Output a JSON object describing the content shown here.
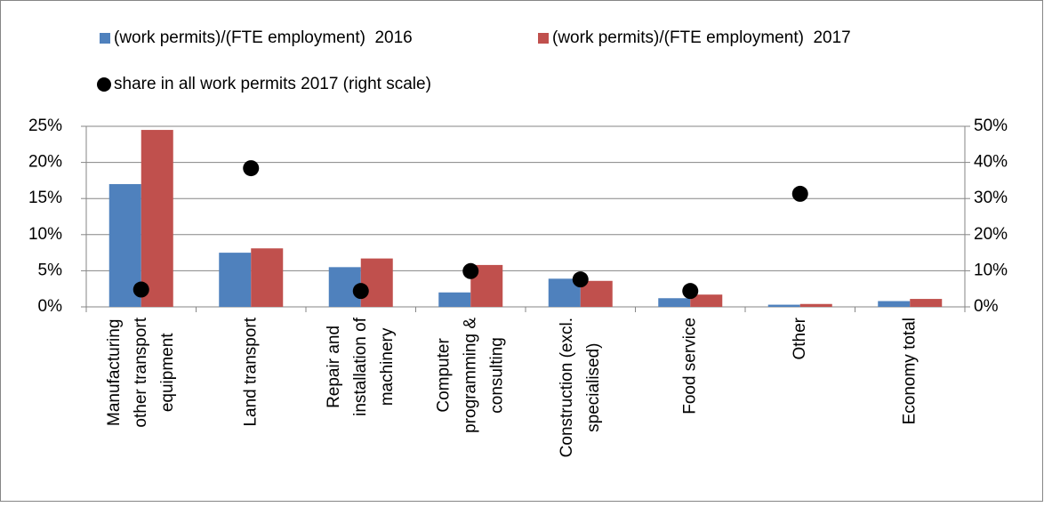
{
  "chart_data": {
    "type": "bar",
    "categories": [
      "Manufacturing other transport equipment",
      "Land transport",
      "Repair and installation of machinery",
      "Computer programming & consulting",
      "Construction (excl. specialised)",
      "Food service",
      "Other",
      "Economy total"
    ],
    "series": [
      {
        "name": "(work permits)/(FTE employment)  2016",
        "type": "bar",
        "color": "#4f81bd",
        "values": [
          17.0,
          7.5,
          5.5,
          2.0,
          3.9,
          1.2,
          0.3,
          0.8
        ]
      },
      {
        "name": "(work permits)/(FTE employment)  2017",
        "type": "bar",
        "color": "#c0504d",
        "values": [
          24.5,
          8.1,
          6.7,
          5.8,
          3.6,
          1.7,
          0.4,
          1.1
        ]
      },
      {
        "name": "share in all work permits 2017 (right scale)",
        "type": "scatter",
        "axis": "y2",
        "color": "#000000",
        "values": [
          4.8,
          38.4,
          4.4,
          9.9,
          7.6,
          4.4,
          31.3,
          null
        ]
      }
    ],
    "ylim": [
      0,
      25
    ],
    "yticks": [
      {
        "value": 0,
        "label": "0%"
      },
      {
        "value": 5,
        "label": "5%"
      },
      {
        "value": 10,
        "label": "10%"
      },
      {
        "value": 15,
        "label": "15%"
      },
      {
        "value": 20,
        "label": "20%"
      },
      {
        "value": 25,
        "label": "25%"
      }
    ],
    "y2lim": [
      0,
      50
    ],
    "y2ticks": [
      {
        "value": 0,
        "label": "0%"
      },
      {
        "value": 10,
        "label": "10%"
      },
      {
        "value": 20,
        "label": "20%"
      },
      {
        "value": 30,
        "label": "30%"
      },
      {
        "value": 40,
        "label": "40%"
      },
      {
        "value": 50,
        "label": "50%"
      }
    ],
    "grid": true,
    "legend": "top"
  }
}
